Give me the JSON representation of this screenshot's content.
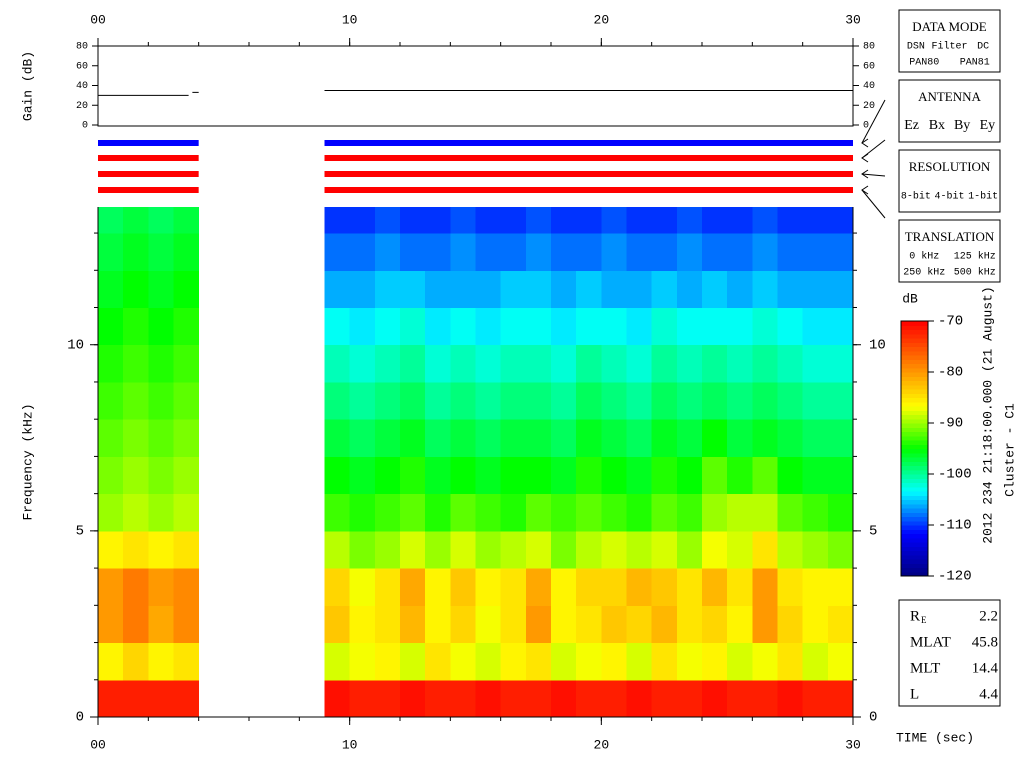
{
  "chart_data": [
    {
      "type": "line",
      "ylabel": "Gain (dB)",
      "xlim": [
        0,
        30
      ],
      "ylim": [
        0,
        80
      ],
      "yticks": [
        0,
        20,
        40,
        60,
        80
      ],
      "xticks": [
        {
          "value": 0,
          "label": "00"
        },
        10,
        20,
        30
      ],
      "xticks_minor": [
        0,
        2,
        4,
        6,
        8,
        10,
        12,
        14,
        16,
        18,
        20,
        22,
        24,
        26,
        28,
        30
      ],
      "series": [
        {
          "color": "#000000",
          "x": [
            0,
            3.6,
            3.65,
            3.75,
            4,
            8,
            9,
            30
          ],
          "values": [
            30,
            30,
            null,
            33,
            33,
            null,
            35,
            35
          ]
        }
      ]
    },
    {
      "type": "status",
      "xlim": [
        0,
        30
      ],
      "rows": [
        {
          "color": "#0000ff",
          "segments": [
            [
              0,
              4
            ],
            [
              9,
              30
            ]
          ]
        },
        {
          "color": "#ff0000",
          "segments": [
            [
              0,
              4
            ],
            [
              9,
              30
            ]
          ]
        },
        {
          "color": "#ff0000",
          "segments": [
            [
              0,
              4
            ],
            [
              9,
              30
            ]
          ]
        },
        {
          "color": "#ff0000",
          "segments": [
            [
              0,
              4
            ],
            [
              9,
              30
            ]
          ]
        }
      ]
    },
    {
      "type": "heatmap",
      "ylabel": "Frequency (kHz)",
      "xlabel": "TIME (sec)",
      "xlim": [
        0,
        30
      ],
      "ylim": [
        0,
        13.7
      ],
      "xticks": [
        {
          "value": 0,
          "label": "00"
        },
        10,
        20,
        30
      ],
      "xticks_minor": [
        0,
        2,
        4,
        6,
        8,
        10,
        12,
        14,
        16,
        18,
        20,
        22,
        24,
        26,
        28,
        30
      ],
      "yticks": [
        0,
        5,
        10
      ],
      "yticks_minor": [
        0,
        1,
        2,
        3,
        4,
        5,
        6,
        7,
        8,
        9,
        10,
        11,
        12,
        13
      ],
      "x_bins": [
        0,
        1,
        2,
        3,
        4,
        5,
        6,
        7,
        8,
        9,
        10,
        11,
        12,
        13,
        14,
        15,
        16,
        17,
        18,
        19,
        20,
        21,
        22,
        23,
        24,
        25,
        26,
        27,
        28,
        29,
        30
      ],
      "y_bins": [
        0,
        1,
        2,
        3,
        4,
        5,
        6,
        7,
        8,
        9,
        10,
        11,
        12,
        13,
        13.7
      ],
      "clim": [
        -120,
        -70
      ],
      "colormap": [
        "#00007f",
        "#0000ff",
        "#00ffff",
        "#00ff00",
        "#ffff00",
        "#ff7f00",
        "#ff0000"
      ],
      "z": [
        [
          -72,
          -72,
          -72,
          -72,
          null,
          null,
          null,
          null,
          null,
          -71,
          -72,
          -72,
          -71,
          -72,
          -72,
          -71,
          -72,
          -72,
          -71,
          -72,
          -72,
          -71,
          -72,
          -72,
          -71,
          -72,
          -72,
          -71,
          -72,
          -72
        ],
        [
          -86,
          -84,
          -86,
          -85,
          null,
          null,
          null,
          null,
          null,
          -88,
          -87,
          -86,
          -88,
          -85,
          -87,
          -88,
          -86,
          -85,
          -88,
          -87,
          -86,
          -88,
          -85,
          -87,
          -86,
          -88,
          -87,
          -85,
          -88,
          -87
        ],
        [
          -80,
          -78,
          -81,
          -79,
          null,
          null,
          null,
          null,
          null,
          -83,
          -86,
          -85,
          -82,
          -86,
          -84,
          -87,
          -85,
          -80,
          -86,
          -85,
          -83,
          -84,
          -82,
          -85,
          -84,
          -86,
          -80,
          -84,
          -86,
          -85
        ],
        [
          -80,
          -78,
          -80,
          -79,
          null,
          null,
          null,
          null,
          null,
          -84,
          -87,
          -85,
          -81,
          -86,
          -83,
          -86,
          -85,
          -81,
          -86,
          -84,
          -84,
          -82,
          -83,
          -85,
          -82,
          -85,
          -80,
          -85,
          -86,
          -86
        ],
        [
          -86,
          -85,
          -86,
          -85,
          null,
          null,
          null,
          null,
          null,
          -89,
          -91,
          -90,
          -88,
          -90,
          -88,
          -90,
          -89,
          -88,
          -91,
          -89,
          -88,
          -89,
          -88,
          -90,
          -87,
          -88,
          -85,
          -89,
          -90,
          -91
        ],
        [
          -90,
          -89,
          -90,
          -89,
          null,
          null,
          null,
          null,
          null,
          -93,
          -94,
          -93,
          -92,
          -94,
          -92,
          -93,
          -94,
          -92,
          -93,
          -92,
          -93,
          -94,
          -92,
          -93,
          -90,
          -89,
          -89,
          -92,
          -93,
          -94
        ],
        [
          -91,
          -90,
          -91,
          -90,
          null,
          null,
          null,
          null,
          null,
          -95,
          -96,
          -95,
          -94,
          -96,
          -95,
          -96,
          -95,
          -95,
          -96,
          -94,
          -95,
          -96,
          -94,
          -95,
          -92,
          -94,
          -92,
          -95,
          -96,
          -96
        ],
        [
          -92,
          -91,
          -92,
          -91,
          null,
          null,
          null,
          null,
          null,
          -97,
          -98,
          -97,
          -96,
          -98,
          -97,
          -98,
          -97,
          -97,
          -98,
          -96,
          -97,
          -98,
          -96,
          -97,
          -95,
          -97,
          -96,
          -97,
          -98,
          -98
        ],
        [
          -93,
          -92,
          -93,
          -92,
          null,
          null,
          null,
          null,
          null,
          -99,
          -100,
          -99,
          -98,
          -100,
          -99,
          -100,
          -99,
          -99,
          -100,
          -98,
          -99,
          -100,
          -98,
          -99,
          -98,
          -99,
          -98,
          -99,
          -100,
          -100
        ],
        [
          -94,
          -93,
          -94,
          -93,
          null,
          null,
          null,
          null,
          null,
          -101,
          -102,
          -101,
          -100,
          -102,
          -101,
          -102,
          -101,
          -101,
          -102,
          -100,
          -101,
          -102,
          -100,
          -101,
          -100,
          -101,
          -100,
          -101,
          -102,
          -102
        ],
        [
          -95,
          -94,
          -95,
          -94,
          null,
          null,
          null,
          null,
          null,
          -103,
          -104,
          -103,
          -102,
          -104,
          -103,
          -104,
          -103,
          -103,
          -104,
          -103,
          -103,
          -104,
          -102,
          -103,
          -103,
          -103,
          -102,
          -103,
          -104,
          -104
        ],
        [
          -96,
          -95,
          -96,
          -95,
          null,
          null,
          null,
          null,
          null,
          -106,
          -106,
          -105,
          -105,
          -106,
          -106,
          -106,
          -105,
          -105,
          -106,
          -105,
          -106,
          -106,
          -105,
          -106,
          -105,
          -106,
          -105,
          -106,
          -106,
          -106
        ],
        [
          -97,
          -96,
          -97,
          -96,
          null,
          null,
          null,
          null,
          null,
          -108,
          -108,
          -107,
          -108,
          -108,
          -107,
          -108,
          -108,
          -107,
          -108,
          -108,
          -107,
          -108,
          -108,
          -107,
          -108,
          -108,
          -107,
          -108,
          -108,
          -108
        ],
        [
          -98,
          -97,
          -98,
          -97,
          null,
          null,
          null,
          null,
          null,
          -110,
          -110,
          -109,
          -110,
          -110,
          -109,
          -110,
          -110,
          -109,
          -110,
          -110,
          -109,
          -110,
          -110,
          -109,
          -110,
          -110,
          -109,
          -110,
          -110,
          -110
        ]
      ]
    },
    {
      "type": "colorbar",
      "title": "dB",
      "ylim": [
        -120,
        -70
      ],
      "yticks": [
        -120,
        -110,
        -100,
        -90,
        -80,
        -70
      ]
    }
  ],
  "legend_boxes": [
    {
      "title": "DATA MODE",
      "rows": [
        [
          {
            "text": "DSN",
            "color": "#ff0000"
          },
          {
            "text": "Filter",
            "color": "#00cc00"
          },
          {
            "text": "DC",
            "color": "#0000ff"
          }
        ],
        [
          {
            "text": "PAN80",
            "color": "#000000"
          },
          {
            "text": "PAN81",
            "color": "#00cccc"
          }
        ]
      ]
    },
    {
      "title": "ANTENNA",
      "rows": [
        [
          {
            "text": "Ez",
            "color": "#ff0000"
          },
          {
            "text": "Bx",
            "color": "#00cc00"
          },
          {
            "text": "By",
            "color": "#0000ff"
          },
          {
            "text": "Ey",
            "color": "#000000"
          }
        ]
      ]
    },
    {
      "title": "RESOLUTION",
      "rows": [
        [
          {
            "text": "8-bit",
            "color": "#ff0000"
          },
          {
            "text": "4-bit",
            "color": "#00cc00"
          },
          {
            "text": "1-bit",
            "color": "#0000ff"
          }
        ]
      ]
    },
    {
      "title": "TRANSLATION",
      "rows": [
        [
          {
            "text": "0 kHz",
            "color": "#ff0000"
          },
          {
            "text": "125 kHz",
            "color": "#00cc00"
          }
        ],
        [
          {
            "text": "250 kHz",
            "color": "#0000ff"
          },
          {
            "text": "500 kHz",
            "color": "#000000"
          }
        ]
      ]
    }
  ],
  "info": [
    {
      "label": "R",
      "sub": "E",
      "value": 2.2
    },
    {
      "label": "MLAT",
      "value": 45.8
    },
    {
      "label": "MLT",
      "value": 14.4
    },
    {
      "label": "L",
      "value": 4.4
    }
  ],
  "caption": [
    "2012 234 21:18:00.000 (21 August)",
    "Cluster - C1"
  ]
}
